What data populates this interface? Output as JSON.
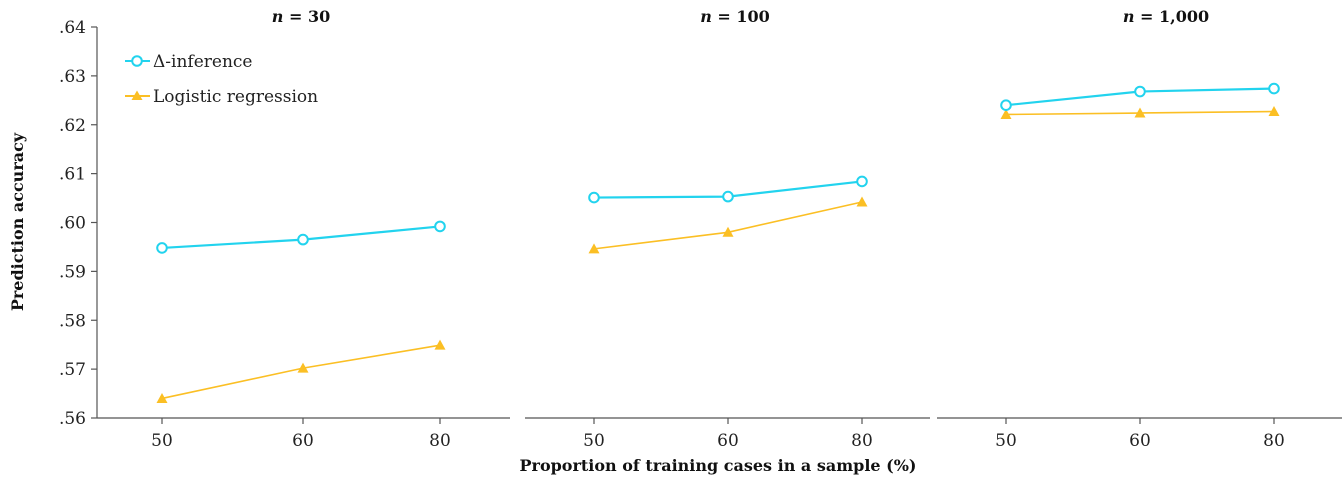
{
  "chart_data": {
    "type": "line",
    "ylabel": "Prediction accuracy",
    "xlabel": "Proportion of training cases in a sample (%)",
    "ylim": [
      0.56,
      0.64
    ],
    "yticks": [
      ".64",
      ".63",
      ".62",
      ".61",
      ".60",
      ".59",
      ".58",
      ".57",
      ".56"
    ],
    "ytick_values": [
      0.64,
      0.63,
      0.62,
      0.61,
      0.6,
      0.59,
      0.58,
      0.57,
      0.56
    ],
    "categories": [
      "50",
      "60",
      "80"
    ],
    "legend": {
      "position": "top-left",
      "entries": [
        "Δ-inference",
        "Logistic regression"
      ]
    },
    "colors": {
      "delta": "#22d3ee",
      "logistic": "#fbbf24",
      "axis": "#555555"
    },
    "panels": [
      {
        "title_prefix": "n",
        "title_suffix": " = 30",
        "series": [
          {
            "name": "Δ-inference",
            "values": [
              0.5948,
              0.5965,
              0.5992
            ]
          },
          {
            "name": "Logistic regression",
            "values": [
              0.564,
              0.5702,
              0.5749
            ]
          }
        ]
      },
      {
        "title_prefix": "n",
        "title_suffix": " = 100",
        "series": [
          {
            "name": "Δ-inference",
            "values": [
              0.6051,
              0.6053,
              0.6084
            ]
          },
          {
            "name": "Logistic regression",
            "values": [
              0.5946,
              0.598,
              0.6042
            ]
          }
        ]
      },
      {
        "title_prefix": "n",
        "title_suffix": " = 1,000",
        "series": [
          {
            "name": "Δ-inference",
            "values": [
              0.624,
              0.6268,
              0.6274
            ]
          },
          {
            "name": "Logistic regression",
            "values": [
              0.6221,
              0.6224,
              0.6227
            ]
          }
        ]
      }
    ]
  }
}
